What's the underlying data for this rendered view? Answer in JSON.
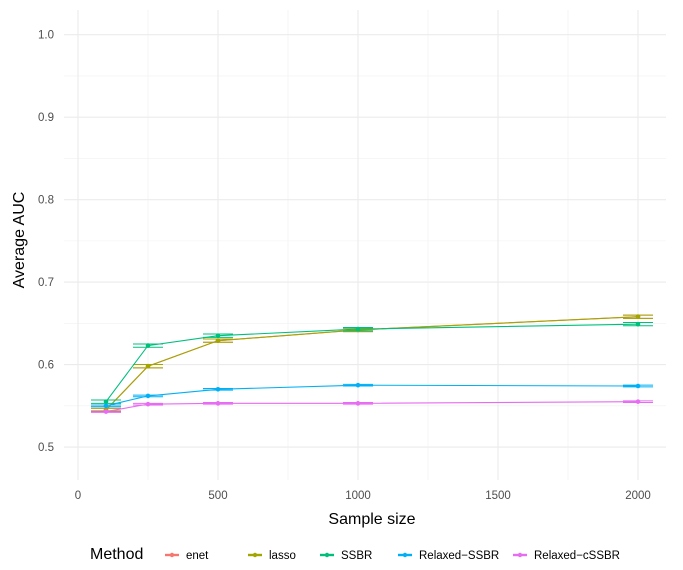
{
  "chart_data": {
    "type": "line",
    "xlabel": "Sample size",
    "ylabel": "Average AUC",
    "xlim": [
      -50,
      2100
    ],
    "ylim": [
      0.46,
      1.03
    ],
    "xticks": [
      0,
      500,
      1000,
      1500,
      2000
    ],
    "yticks": [
      0.5,
      0.6,
      0.7,
      0.8,
      0.9,
      1.0
    ],
    "xtick_labels": [
      "0",
      "500",
      "1000",
      "1500",
      "2000"
    ],
    "ytick_labels": [
      "0.5",
      "0.6",
      "0.7",
      "0.8",
      "0.9",
      "1.0"
    ],
    "grid": true,
    "legend": {
      "title": "Method",
      "position": "bottom"
    },
    "x": [
      100,
      250,
      500,
      1000,
      2000
    ],
    "series": [
      {
        "name": "enet",
        "color": "#F8766D",
        "values": [
          0.545,
          0.598,
          0.629,
          0.642,
          0.658
        ],
        "errors": [
          0.002,
          0.002,
          0.002,
          0.002,
          0.002
        ]
      },
      {
        "name": "lasso",
        "color": "#A3A500",
        "values": [
          0.545,
          0.598,
          0.629,
          0.642,
          0.658
        ],
        "errors": [
          0.002,
          0.002,
          0.002,
          0.002,
          0.002
        ]
      },
      {
        "name": "SSBR",
        "color": "#00BF7D",
        "values": [
          0.555,
          0.623,
          0.635,
          0.643,
          0.649
        ],
        "errors": [
          0.002,
          0.002,
          0.002,
          0.002,
          0.002
        ]
      },
      {
        "name": "Relaxed−SSBR",
        "color": "#00B0F6",
        "values": [
          0.55,
          0.562,
          0.57,
          0.575,
          0.574
        ],
        "errors": [
          0.001,
          0.001,
          0.001,
          0.001,
          0.001
        ]
      },
      {
        "name": "Relaxed−cSSBR",
        "color": "#E76BF3",
        "values": [
          0.543,
          0.552,
          0.553,
          0.553,
          0.555
        ],
        "errors": [
          0.001,
          0.001,
          0.001,
          0.001,
          0.001
        ]
      }
    ]
  }
}
